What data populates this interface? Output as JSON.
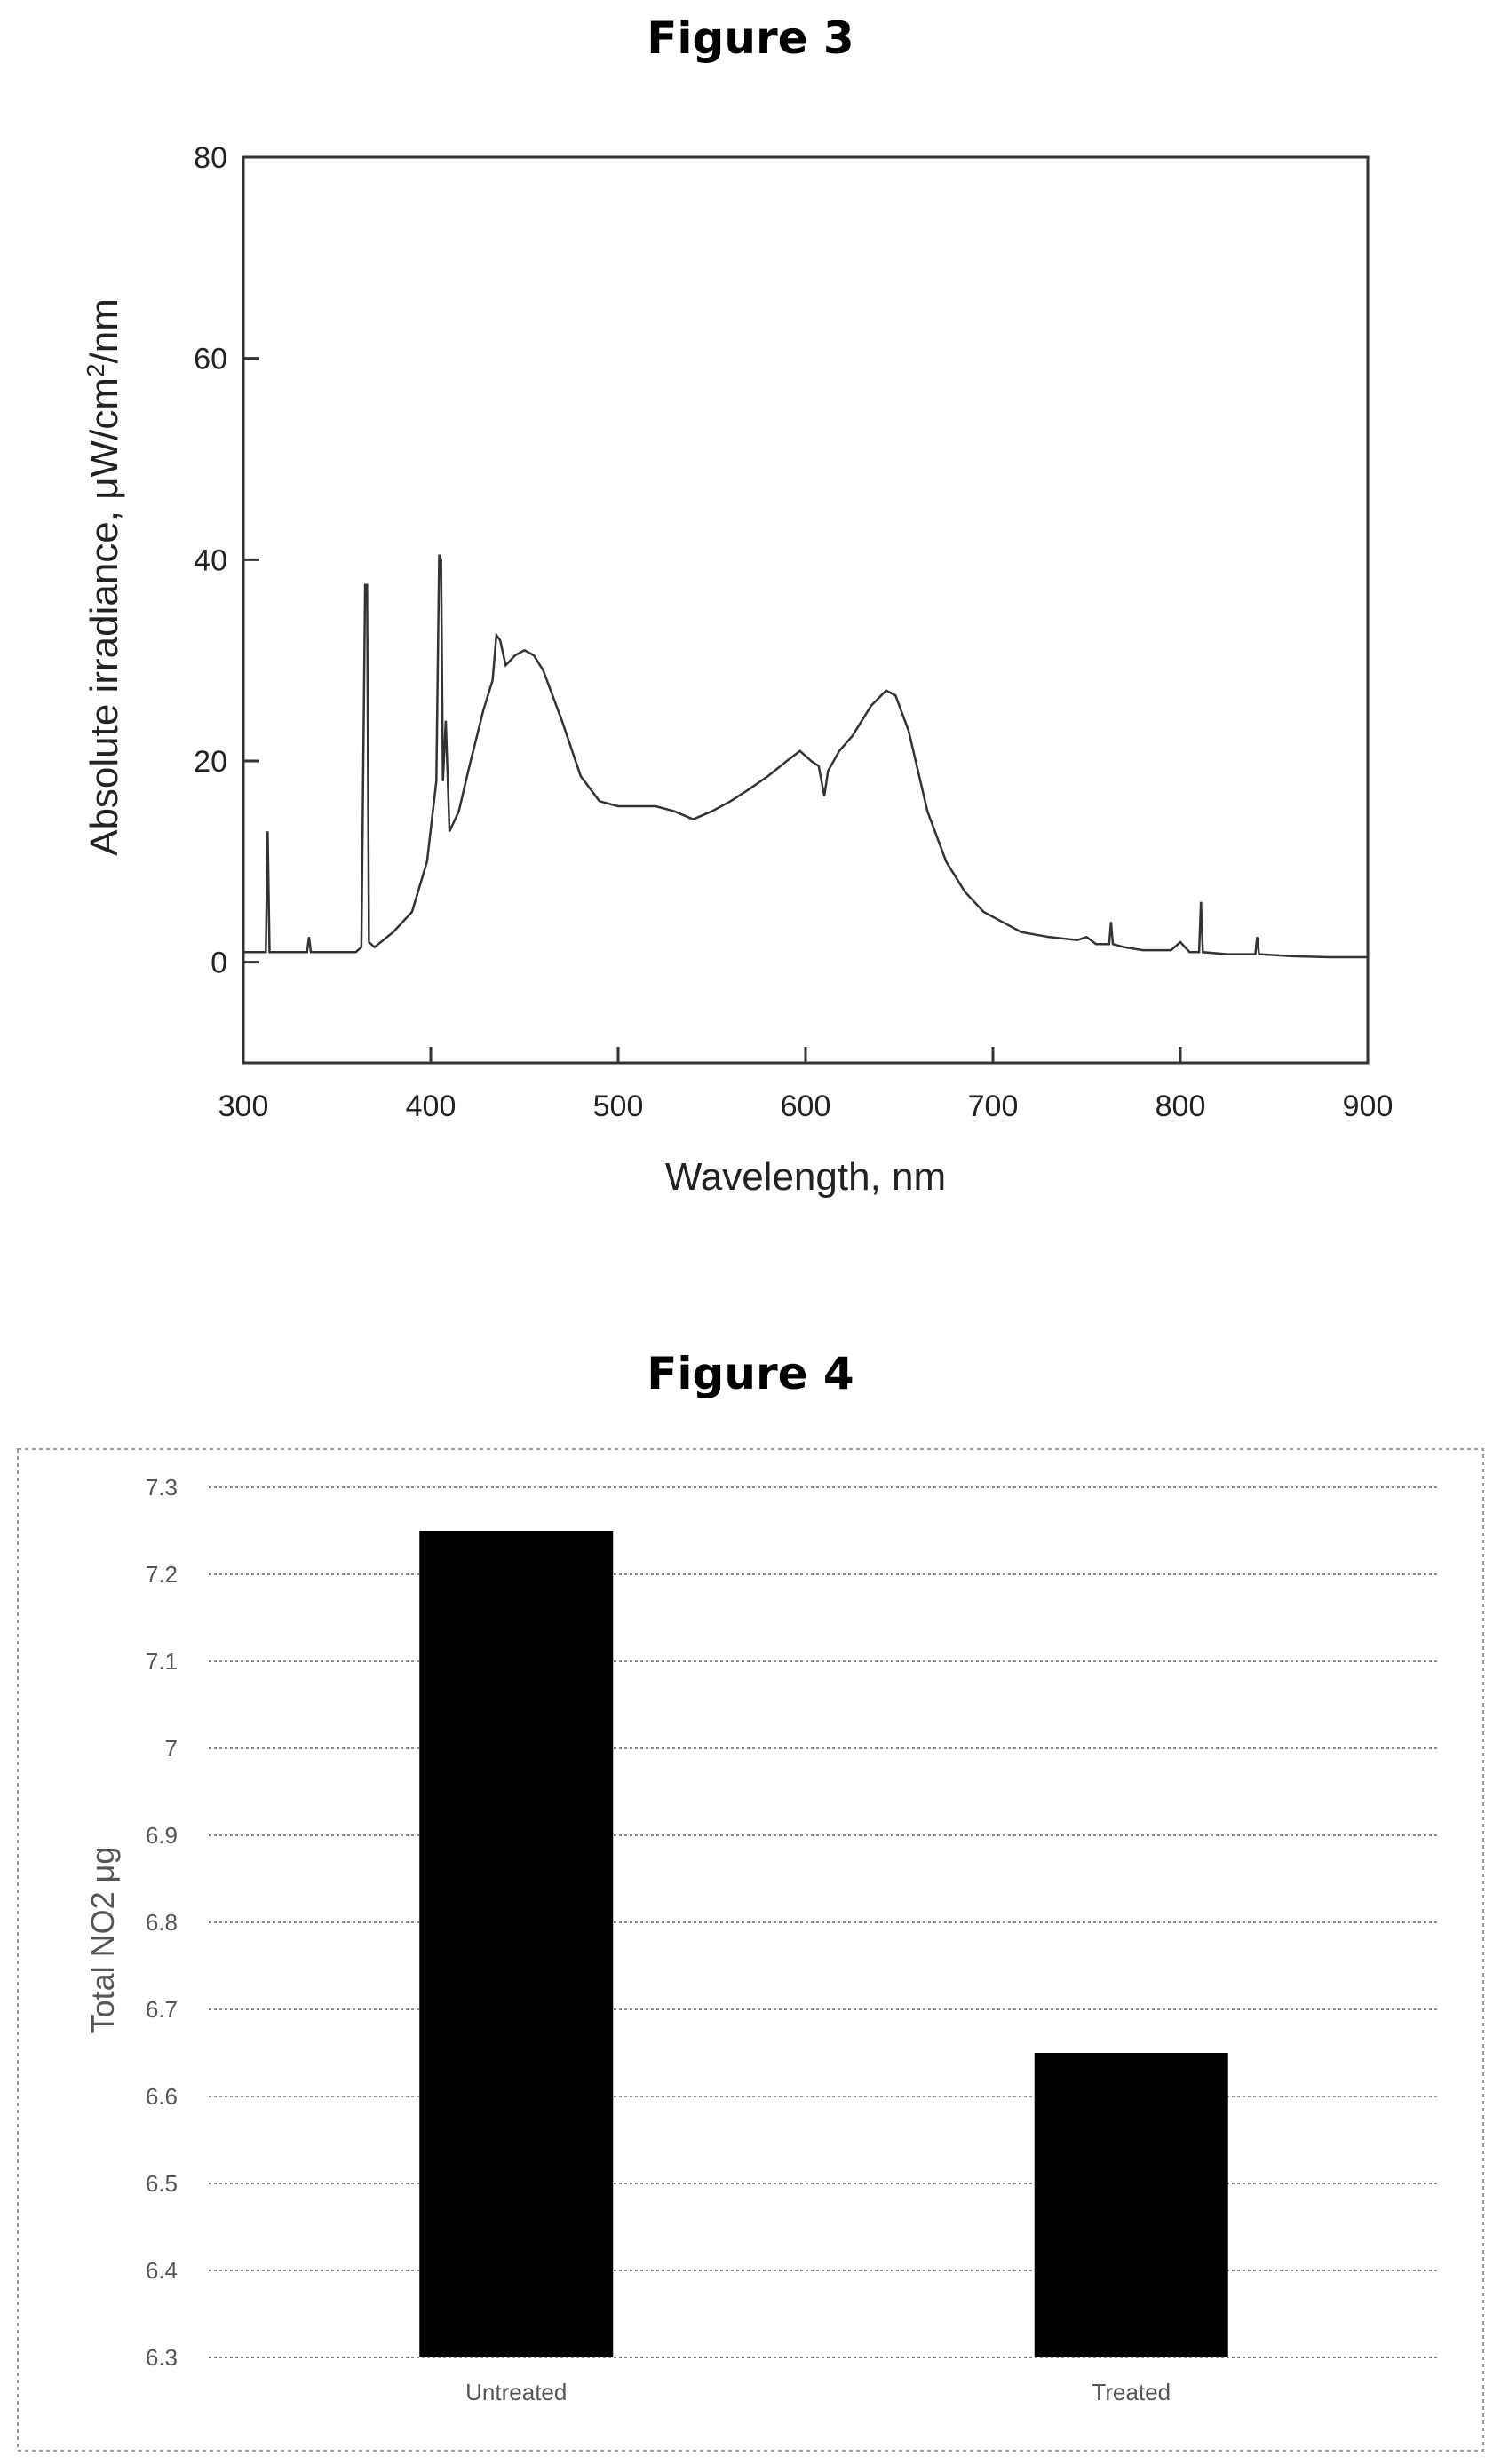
{
  "figure3": {
    "title": "Figure 3",
    "chart_data": {
      "type": "line",
      "xlabel": "Wavelength, nm",
      "ylabel_main": "Absolute irradiance, μW/cm",
      "ylabel_sup": "2",
      "ylabel_end": "/nm",
      "xlim": [
        300,
        900
      ],
      "ylim": [
        -10,
        80
      ],
      "x_ticks": [
        300,
        400,
        500,
        600,
        700,
        800,
        900
      ],
      "y_ticks": [
        0,
        20,
        40,
        60,
        80
      ],
      "grid": false,
      "series": [
        {
          "points": [
            [
              300,
              1
            ],
            [
              310,
              1
            ],
            [
              312,
              1
            ],
            [
              313,
              13
            ],
            [
              314,
              1
            ],
            [
              320,
              1
            ],
            [
              330,
              1
            ],
            [
              334,
              1
            ],
            [
              335,
              2.5
            ],
            [
              336,
              1
            ],
            [
              350,
              1
            ],
            [
              360,
              1
            ],
            [
              363,
              1.5
            ],
            [
              365,
              37.5
            ],
            [
              366,
              37.5
            ],
            [
              367,
              2
            ],
            [
              370,
              1.5
            ],
            [
              380,
              3
            ],
            [
              390,
              5
            ],
            [
              398,
              10
            ],
            [
              403,
              18
            ],
            [
              404.5,
              40.5
            ],
            [
              405.5,
              40
            ],
            [
              406.5,
              18
            ],
            [
              408,
              24
            ],
            [
              410,
              13
            ],
            [
              415,
              15
            ],
            [
              420,
              19
            ],
            [
              428,
              25
            ],
            [
              433,
              28
            ],
            [
              435,
              32.5
            ],
            [
              437,
              32
            ],
            [
              440,
              29.5
            ],
            [
              445,
              30.5
            ],
            [
              450,
              31
            ],
            [
              455,
              30.5
            ],
            [
              460,
              29
            ],
            [
              470,
              24
            ],
            [
              480,
              18.5
            ],
            [
              490,
              16
            ],
            [
              500,
              15.5
            ],
            [
              510,
              15.5
            ],
            [
              520,
              15.5
            ],
            [
              530,
              15
            ],
            [
              540,
              14.2
            ],
            [
              550,
              15
            ],
            [
              560,
              16
            ],
            [
              570,
              17.2
            ],
            [
              580,
              18.5
            ],
            [
              590,
              20
            ],
            [
              597,
              21
            ],
            [
              603,
              20
            ],
            [
              607,
              19.5
            ],
            [
              610,
              16.5
            ],
            [
              612,
              19
            ],
            [
              618,
              21
            ],
            [
              625,
              22.5
            ],
            [
              635,
              25.5
            ],
            [
              643,
              27
            ],
            [
              648,
              26.5
            ],
            [
              655,
              23
            ],
            [
              665,
              15
            ],
            [
              675,
              10
            ],
            [
              685,
              7
            ],
            [
              695,
              5
            ],
            [
              705,
              4
            ],
            [
              715,
              3
            ],
            [
              730,
              2.5
            ],
            [
              745,
              2.2
            ],
            [
              750,
              2.5
            ],
            [
              755,
              1.8
            ],
            [
              762,
              1.8
            ],
            [
              763,
              4
            ],
            [
              764,
              1.8
            ],
            [
              770,
              1.5
            ],
            [
              780,
              1.2
            ],
            [
              795,
              1.2
            ],
            [
              800,
              2
            ],
            [
              805,
              1
            ],
            [
              810,
              1
            ],
            [
              811,
              6
            ],
            [
              812,
              1
            ],
            [
              825,
              0.8
            ],
            [
              840,
              0.8
            ],
            [
              841,
              2.5
            ],
            [
              842,
              0.8
            ],
            [
              860,
              0.6
            ],
            [
              880,
              0.5
            ],
            [
              900,
              0.5
            ]
          ]
        }
      ]
    }
  },
  "figure4": {
    "title": "Figure 4",
    "chart_data": {
      "type": "bar",
      "categories": [
        "Untreated",
        "Treated"
      ],
      "values": [
        7.25,
        6.65
      ],
      "ylabel": "Total NO2 μg",
      "ylim": [
        6.3,
        7.3
      ],
      "y_ticks": [
        "6.3",
        "6.4",
        "6.5",
        "6.6",
        "6.7",
        "6.8",
        "6.9",
        "7",
        "7.1",
        "7.2",
        "7.3"
      ],
      "grid": true,
      "bar_color": "#000000"
    }
  }
}
